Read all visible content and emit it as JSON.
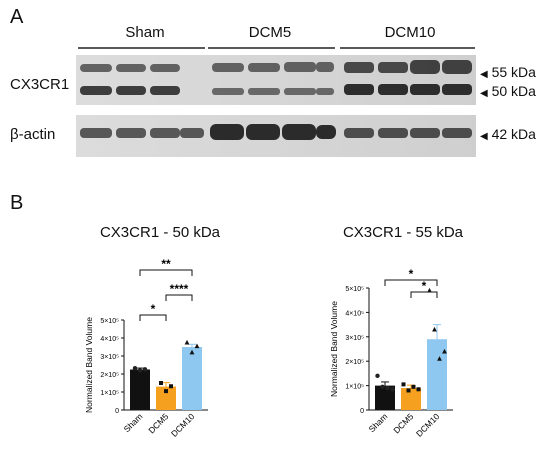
{
  "panel_a": {
    "letter": "A",
    "groups": [
      "Sham",
      "DCM5",
      "DCM10"
    ],
    "rows": [
      "CX3CR1",
      "β-actin"
    ],
    "markers": [
      "55 kDa",
      "50 kDa",
      "42 kDa"
    ],
    "arrow": "◀"
  },
  "panel_b": {
    "letter": "B"
  },
  "chart_data": [
    {
      "type": "bar",
      "title": "CX3CR1 - 50 kDa",
      "ylabel": "Normalized Band  Volume",
      "categories": [
        "Sham",
        "DCM5",
        "DCM10"
      ],
      "values": [
        225000,
        130000,
        350000
      ],
      "errors": [
        8000,
        22000,
        15000
      ],
      "ylim": [
        0,
        500000
      ],
      "ytick_labels": [
        "0",
        "1×10⁵",
        "2×10⁵",
        "3×10⁵",
        "4×10⁵",
        "5×10⁵"
      ],
      "colors": [
        "#111111",
        "#f5a11f",
        "#8ec7ef"
      ],
      "points": [
        [
          232000,
          220000,
          226000
        ],
        [
          150000,
          105000,
          132000
        ],
        [
          375000,
          320000,
          355000
        ]
      ],
      "point_shapes": [
        "circle",
        "square",
        "triangle"
      ],
      "significance": [
        {
          "pair": [
            0,
            1
          ],
          "label": "*"
        },
        {
          "pair": [
            1,
            2
          ],
          "label": "****"
        },
        {
          "pair": [
            0,
            2
          ],
          "label": "**"
        }
      ]
    },
    {
      "type": "bar",
      "title": "CX3CR1 - 55 kDa",
      "ylabel": "Normalized Band  Volume",
      "categories": [
        "Sham",
        "DCM5",
        "DCM10"
      ],
      "values": [
        100000,
        90000,
        290000
      ],
      "errors": [
        15000,
        12000,
        60000
      ],
      "ylim": [
        0,
        500000
      ],
      "ytick_labels": [
        "0",
        "1×10⁵",
        "2×10⁵",
        "3×10⁵",
        "4×10⁵",
        "5×10⁵"
      ],
      "colors": [
        "#111111",
        "#f5a11f",
        "#8ec7ef"
      ],
      "points": [
        [
          140000,
          95000,
          90000,
          85000
        ],
        [
          105000,
          80000,
          95000,
          85000
        ],
        [
          490000,
          330000,
          210000,
          240000
        ]
      ],
      "point_shapes": [
        "circle",
        "square",
        "triangle"
      ],
      "significance": [
        {
          "pair": [
            1,
            2
          ],
          "label": "*"
        },
        {
          "pair": [
            0,
            2
          ],
          "label": "*"
        }
      ]
    }
  ]
}
